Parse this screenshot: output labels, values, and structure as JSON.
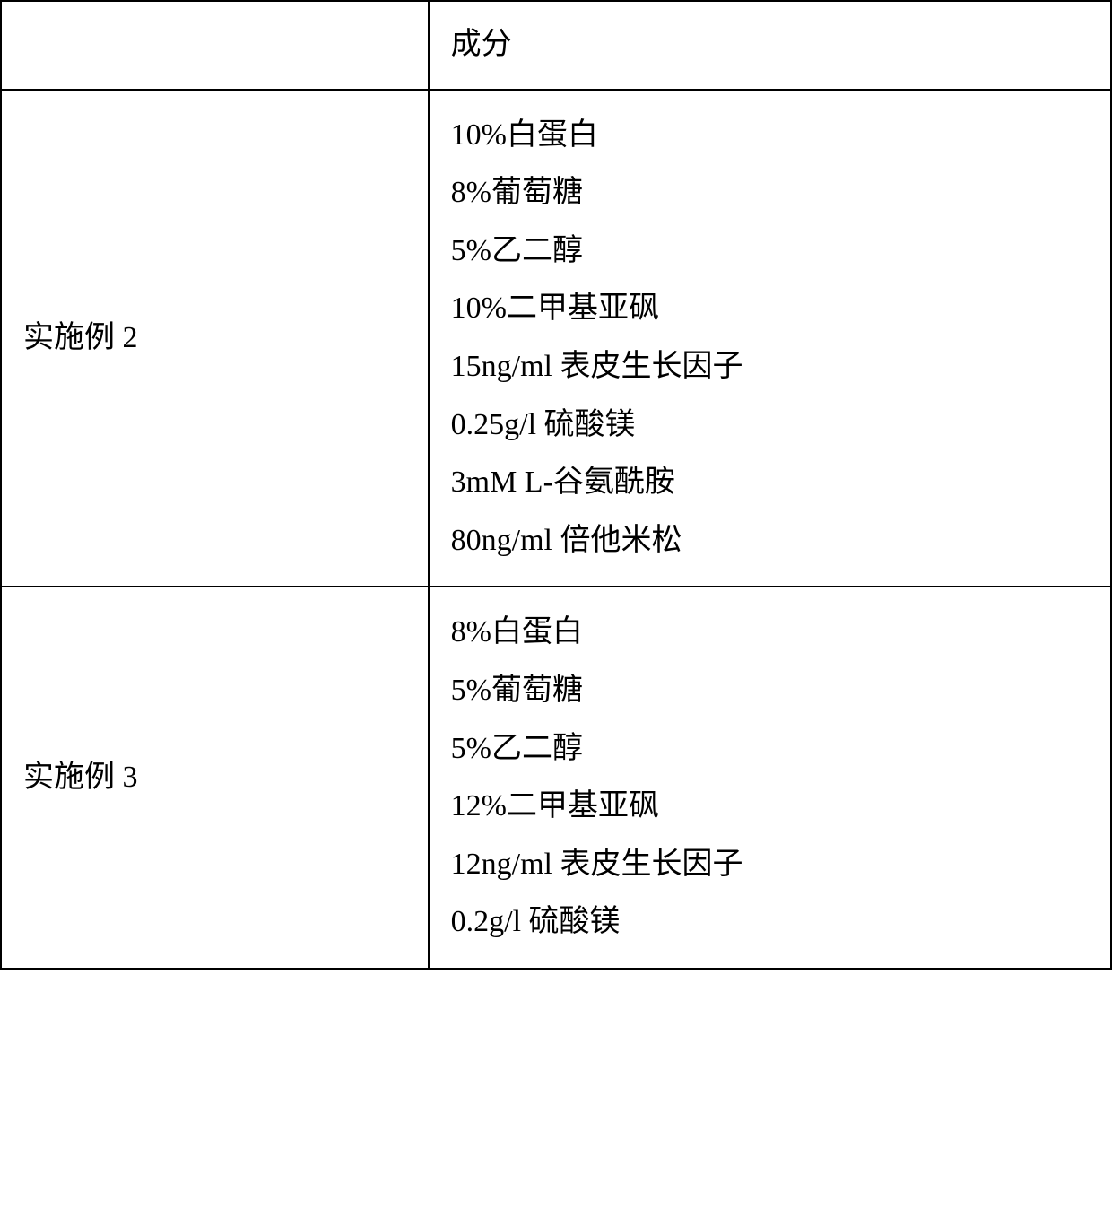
{
  "table": {
    "header": {
      "col1": "",
      "col2": "成分"
    },
    "rows": [
      {
        "label": "实施例 2",
        "ingredients": [
          "10%白蛋白",
          "8%葡萄糖",
          "5%乙二醇",
          "10%二甲基亚砜",
          "15ng/ml 表皮生长因子",
          "0.25g/l 硫酸镁",
          "3mM L-谷氨酰胺",
          "80ng/ml 倍他米松"
        ]
      },
      {
        "label": "实施例 3",
        "ingredients": [
          "8%白蛋白",
          "5%葡萄糖",
          "5%乙二醇",
          "12%二甲基亚砜",
          "12ng/ml 表皮生长因子",
          "0.2g/l 硫酸镁"
        ]
      }
    ],
    "styling": {
      "border_color": "#000000",
      "border_width": 2,
      "background_color": "#ffffff",
      "text_color": "#000000",
      "font_size": 34,
      "line_height": 1.9,
      "col1_width_percent": 38.5,
      "col2_width_percent": 61.5,
      "cell_padding_v": 18,
      "cell_padding_h": 24
    }
  }
}
